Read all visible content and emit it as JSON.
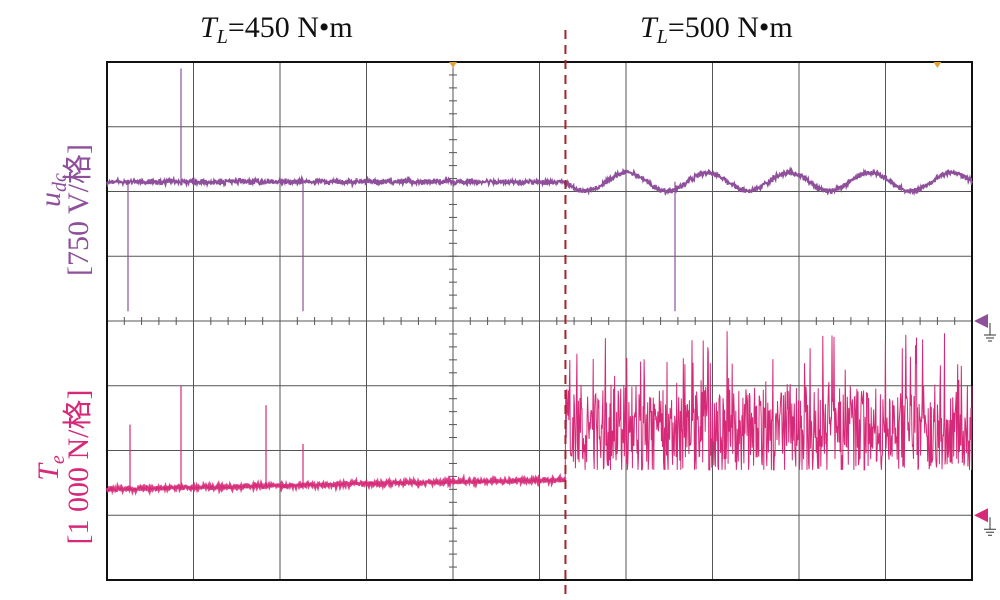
{
  "chart_data": {
    "type": "line",
    "xlabel": "",
    "grid": true,
    "divisions": {
      "x": 10,
      "y": 8
    },
    "annotations": [
      {
        "text_main": "T",
        "text_sub": "L",
        "text_rest": "=450 N•m"
      },
      {
        "text_main": "T",
        "text_sub": "L",
        "text_rest": "=500 N•m"
      }
    ],
    "series": [
      {
        "channel": "udc",
        "label_main": "u",
        "label_sub": "dc",
        "scale": "[750 V/格]",
        "color": "#8e4f9b",
        "before": {
          "level": 0.0,
          "noise": 0.06
        },
        "after": {
          "oscillation_cycles": 5,
          "amplitude": 0.13,
          "noise": 0.06
        }
      },
      {
        "channel": "Te",
        "label_main": "T",
        "label_sub": "e",
        "scale": "[1 000 N/格]",
        "color": "#d62a78",
        "before": {
          "level": 0.0,
          "noise": 0.05
        },
        "after": {
          "level": 0.85,
          "spread": 0.7
        }
      }
    ],
    "step_time_division": 5.3
  }
}
